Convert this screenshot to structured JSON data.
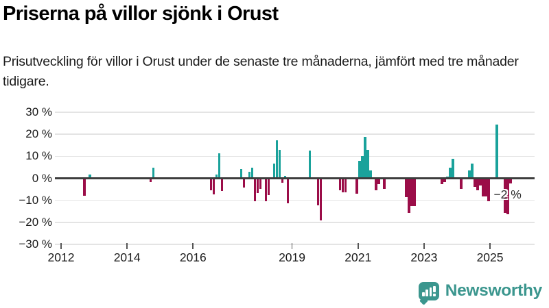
{
  "title": "Priserna på villor sjönk i Orust",
  "subtitle": "Prisutveckling för villor i Orust under de senaste tre månaderna, jämfört med tre månader tidigare.",
  "annotation": {
    "latest_value_label": "−2 %"
  },
  "branding": {
    "name": "Newsworthy",
    "icon": "bar-chart-speech-bubble-icon"
  },
  "colors": {
    "positive": "#1aa29b",
    "negative": "#9b0d48",
    "zero_line": "#3d3d3d",
    "grid": "#e4e4e4",
    "brand": "#3b968e"
  },
  "chart_data": {
    "type": "bar",
    "unit": "%",
    "title": "Priserna på villor sjönk i Orust",
    "ylabel": "",
    "xlabel": "",
    "ylim": [
      -30,
      30
    ],
    "grid": true,
    "y_ticks": [
      30,
      20,
      10,
      0,
      -10,
      -20,
      -30
    ],
    "y_tick_labels": [
      "30 %",
      "20 %",
      "10 %",
      "0 %",
      "−10 %",
      "−20 %",
      "−30 %"
    ],
    "x_tick_years": [
      2012,
      2014,
      2016,
      2019,
      2021,
      2023,
      2025
    ],
    "x_tick_labels": [
      "2012",
      "2014",
      "2016",
      "2019",
      "2021",
      "2023",
      "2025"
    ],
    "x_range_years": [
      2012,
      2026.5
    ],
    "bars": [
      {
        "month": "2012-09",
        "value": -7.5
      },
      {
        "month": "2012-11",
        "value": 1.8
      },
      {
        "month": "2014-09",
        "value": -1.3
      },
      {
        "month": "2014-10",
        "value": 4.8
      },
      {
        "month": "2016-07",
        "value": -5.1
      },
      {
        "month": "2016-08",
        "value": -7.0
      },
      {
        "month": "2016-09",
        "value": 1.8
      },
      {
        "month": "2016-10",
        "value": 11.5
      },
      {
        "month": "2016-11",
        "value": -5.4
      },
      {
        "month": "2017-06",
        "value": 4.3
      },
      {
        "month": "2017-07",
        "value": -3.7
      },
      {
        "month": "2017-09",
        "value": 2.9
      },
      {
        "month": "2017-10",
        "value": 4.9
      },
      {
        "month": "2017-11",
        "value": -10.0
      },
      {
        "month": "2017-12",
        "value": -6.2
      },
      {
        "month": "2018-01",
        "value": -4.4
      },
      {
        "month": "2018-03",
        "value": -10.0
      },
      {
        "month": "2018-04",
        "value": -7.2
      },
      {
        "month": "2018-06",
        "value": 6.7
      },
      {
        "month": "2018-07",
        "value": 17.2
      },
      {
        "month": "2018-08",
        "value": 12.9
      },
      {
        "month": "2018-09",
        "value": -1.5
      },
      {
        "month": "2018-10",
        "value": 1.2
      },
      {
        "month": "2018-11",
        "value": -11.0
      },
      {
        "month": "2019-07",
        "value": 12.7
      },
      {
        "month": "2019-10",
        "value": -11.9
      },
      {
        "month": "2019-11",
        "value": -18.8
      },
      {
        "month": "2020-06",
        "value": -5.0
      },
      {
        "month": "2020-07",
        "value": -5.8
      },
      {
        "month": "2020-08",
        "value": -5.8
      },
      {
        "month": "2020-12",
        "value": -6.5
      },
      {
        "month": "2021-01",
        "value": 8.0
      },
      {
        "month": "2021-02",
        "value": 10.0
      },
      {
        "month": "2021-03",
        "value": 18.7
      },
      {
        "month": "2021-04",
        "value": 13.0
      },
      {
        "month": "2021-05",
        "value": 3.7
      },
      {
        "month": "2021-07",
        "value": -5.0
      },
      {
        "month": "2021-08",
        "value": -2.3
      },
      {
        "month": "2021-10",
        "value": -4.3
      },
      {
        "month": "2022-06",
        "value": -8.1
      },
      {
        "month": "2022-07",
        "value": -15.2
      },
      {
        "month": "2022-08",
        "value": -12.2
      },
      {
        "month": "2022-09",
        "value": -12.2
      },
      {
        "month": "2023-07",
        "value": -2.3
      },
      {
        "month": "2023-08",
        "value": -1.1
      },
      {
        "month": "2023-09",
        "value": 0.9
      },
      {
        "month": "2023-10",
        "value": 4.9
      },
      {
        "month": "2023-11",
        "value": 8.8
      },
      {
        "month": "2024-02",
        "value": -4.3
      },
      {
        "month": "2024-05",
        "value": 3.7
      },
      {
        "month": "2024-06",
        "value": 6.7
      },
      {
        "month": "2024-07",
        "value": -3.3
      },
      {
        "month": "2024-08",
        "value": -5.0
      },
      {
        "month": "2024-09",
        "value": -2.8
      },
      {
        "month": "2024-10",
        "value": -7.9
      },
      {
        "month": "2024-11",
        "value": -7.9
      },
      {
        "month": "2024-12",
        "value": -10.0
      },
      {
        "month": "2025-03",
        "value": 24.5
      },
      {
        "month": "2025-06",
        "value": -15.2
      },
      {
        "month": "2025-07",
        "value": -15.8
      },
      {
        "month": "2025-08",
        "value": -2.0
      }
    ],
    "legend": null,
    "annotations": [
      {
        "text": "−2 %",
        "target_month": "2025-08"
      }
    ]
  }
}
